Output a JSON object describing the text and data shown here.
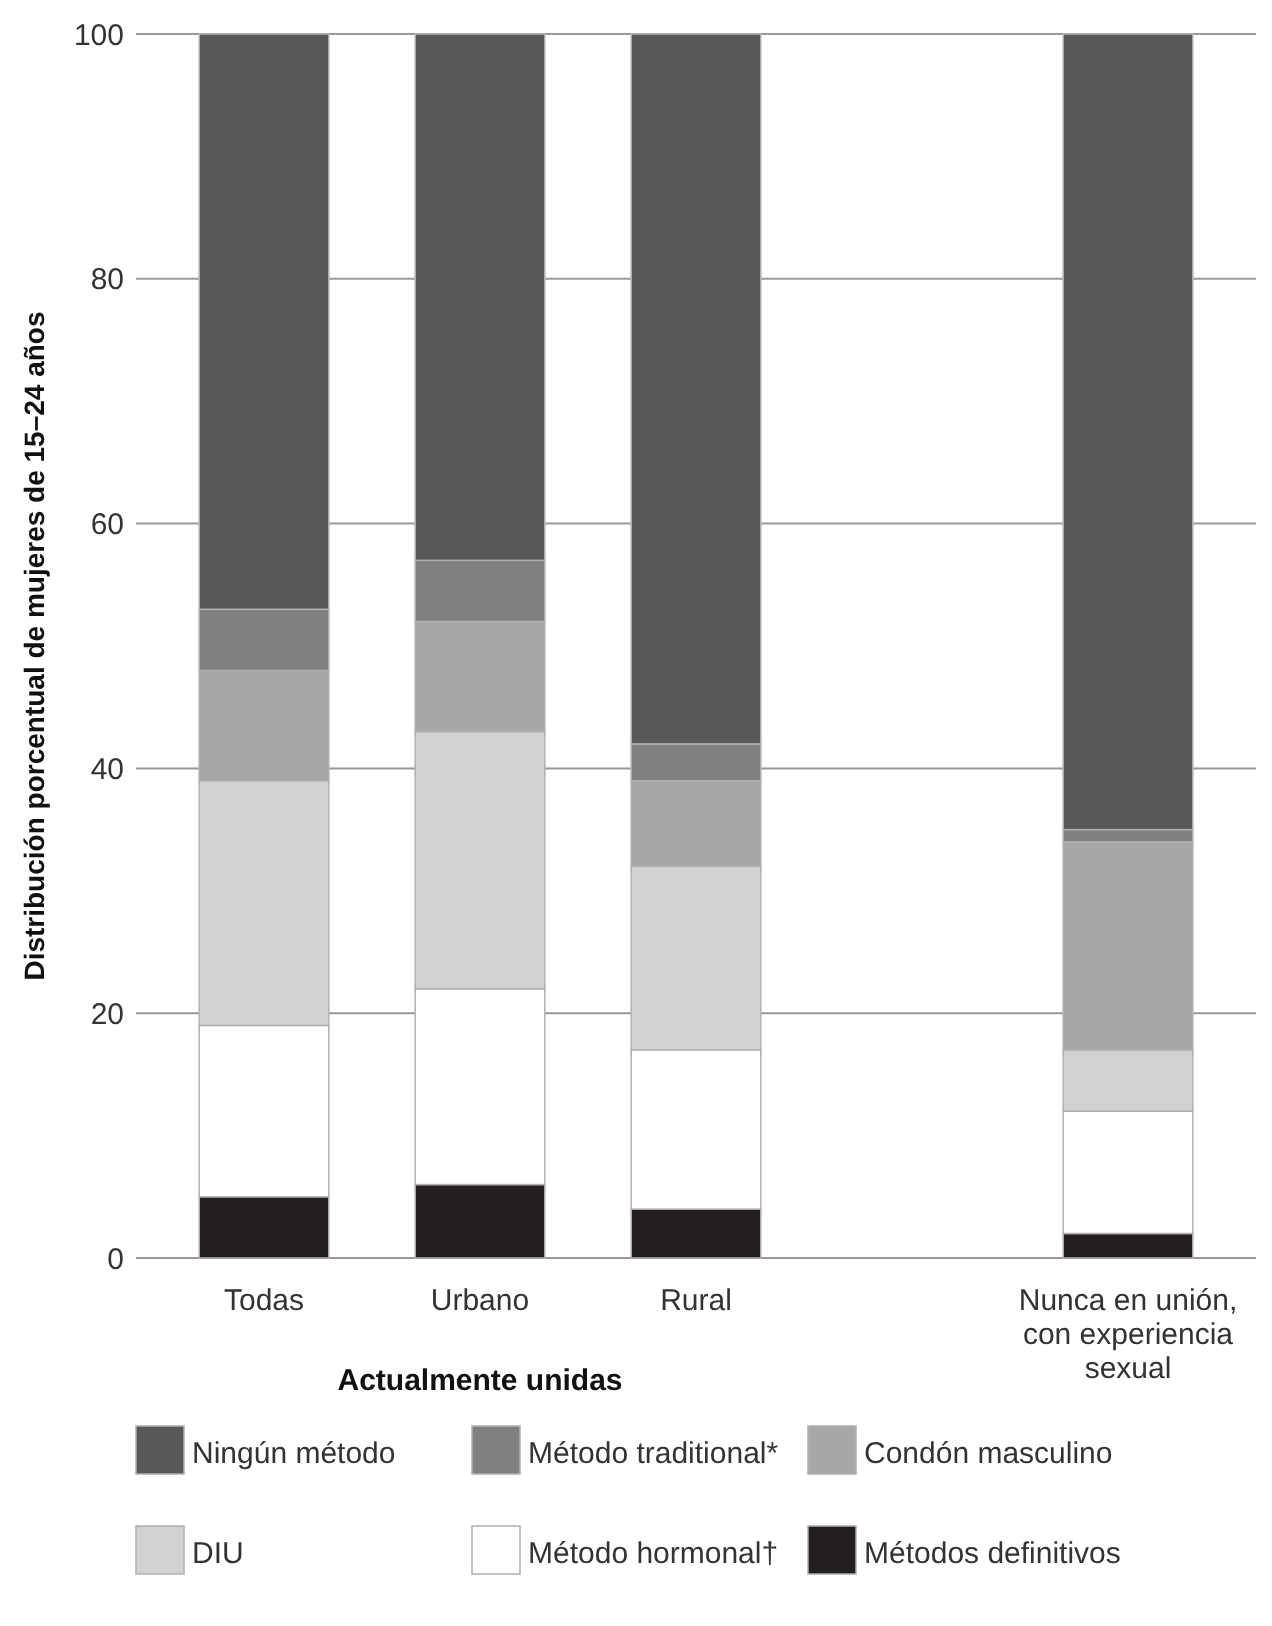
{
  "chart_data": {
    "type": "bar",
    "stacked": true,
    "ylabel": "Distribución porcentual de mujeres de 15–24 años",
    "xlabel": "Actualmente unidas",
    "categories": [
      "Todas",
      "Urbano",
      "Rural",
      null,
      "Nunca en unión, con experiencia sexual"
    ],
    "series": [
      {
        "name": "Métodos definitivos",
        "color": "#231f20",
        "values": [
          5,
          6,
          4,
          null,
          2
        ]
      },
      {
        "name": "Método hormonal†",
        "color": "#ffffff",
        "values": [
          14,
          16,
          13,
          null,
          10
        ]
      },
      {
        "name": "DIU",
        "color": "#d1d2d4",
        "values": [
          20,
          21,
          15,
          null,
          5
        ]
      },
      {
        "name": "Condón masculino",
        "color": "#a7a7a9",
        "values": [
          9,
          9,
          7,
          null,
          17
        ]
      },
      {
        "name": "Método traditional*",
        "color": "#808082",
        "values": [
          5,
          5,
          3,
          null,
          1
        ]
      },
      {
        "name": "Ningún método",
        "color": "#58585a",
        "values": [
          47,
          43,
          58,
          null,
          65
        ]
      }
    ],
    "ylim": [
      0,
      100
    ],
    "yticks": [
      0,
      20,
      40,
      60,
      80,
      100
    ],
    "grid": "y",
    "legend": "bottom"
  }
}
